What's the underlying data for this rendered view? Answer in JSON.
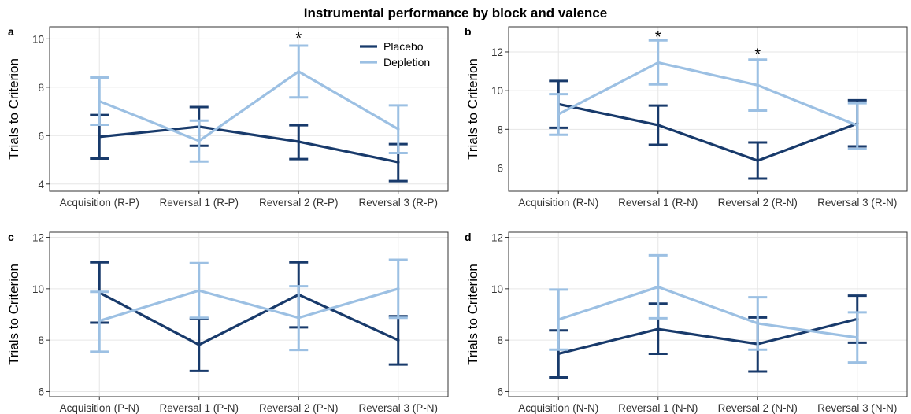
{
  "figure_title": "Instrumental performance by block and valence",
  "colors": {
    "placebo": "#183a6b",
    "depletion": "#9cc0e3",
    "grid": "#e6e6e6",
    "frame": "#333333"
  },
  "legend": [
    {
      "name": "Placebo",
      "color": "#183a6b"
    },
    {
      "name": "Depletion",
      "color": "#9cc0e3"
    }
  ],
  "chart_data": [
    {
      "type": "line",
      "panel_label": "a",
      "title": "",
      "xlabel": "",
      "ylabel": "Trials to Criterion",
      "categories": [
        "Acquisition (R-P)",
        "Reversal 1 (R-P)",
        "Reversal 2 (R-P)",
        "Reversal 3 (R-P)"
      ],
      "ylim": [
        3.7,
        10.5
      ],
      "yticks": [
        4,
        6,
        8,
        10
      ],
      "grid": true,
      "legend_position": "top-right",
      "significance": [
        {
          "category_index": 2,
          "label": "*",
          "y": 10.2
        }
      ],
      "series": [
        {
          "name": "Placebo",
          "values": [
            5.95,
            6.37,
            5.75,
            4.9
          ],
          "error_low": [
            5.05,
            5.58,
            5.03,
            4.12
          ],
          "error_high": [
            6.85,
            7.18,
            6.43,
            5.65
          ]
        },
        {
          "name": "Depletion",
          "values": [
            7.42,
            5.78,
            8.65,
            6.27
          ],
          "error_low": [
            6.45,
            4.93,
            7.58,
            5.28
          ],
          "error_high": [
            8.4,
            6.62,
            9.72,
            7.25
          ]
        }
      ]
    },
    {
      "type": "line",
      "panel_label": "b",
      "title": "",
      "xlabel": "",
      "ylabel": "Trials to Criterion",
      "categories": [
        "Acquisition (R-N)",
        "Reversal 1 (R-N)",
        "Reversal 2 (R-N)",
        "Reversal 3 (R-N)"
      ],
      "ylim": [
        4.8,
        13.3
      ],
      "yticks": [
        6,
        8,
        10,
        12
      ],
      "grid": true,
      "significance": [
        {
          "category_index": 1,
          "label": "*",
          "y": 13.0
        },
        {
          "category_index": 2,
          "label": "*",
          "y": 12.1
        }
      ],
      "series": [
        {
          "name": "Placebo",
          "values": [
            9.3,
            8.22,
            6.38,
            8.3
          ],
          "error_low": [
            8.08,
            7.2,
            5.45,
            7.12
          ],
          "error_high": [
            10.5,
            9.23,
            7.32,
            9.5
          ]
        },
        {
          "name": "Depletion",
          "values": [
            8.78,
            11.45,
            10.28,
            8.2
          ],
          "error_low": [
            7.72,
            10.32,
            8.97,
            6.98
          ],
          "error_high": [
            9.82,
            12.6,
            11.6,
            9.35
          ]
        }
      ]
    },
    {
      "type": "line",
      "panel_label": "c",
      "title": "",
      "xlabel": "",
      "ylabel": "Trials to Criterion",
      "categories": [
        "Acquisition (P-N)",
        "Reversal 1 (P-N)",
        "Reversal 2 (P-N)",
        "Reversal 3 (P-N)"
      ],
      "ylim": [
        5.8,
        12.2
      ],
      "yticks": [
        6,
        8,
        10,
        12
      ],
      "grid": true,
      "significance": [],
      "series": [
        {
          "name": "Placebo",
          "values": [
            9.85,
            7.82,
            9.77,
            8.0
          ],
          "error_low": [
            8.68,
            6.8,
            8.5,
            7.05
          ],
          "error_high": [
            11.03,
            8.83,
            11.03,
            8.93
          ]
        },
        {
          "name": "Depletion",
          "values": [
            8.75,
            9.93,
            8.87,
            10.0
          ],
          "error_low": [
            7.55,
            8.87,
            7.62,
            8.87
          ],
          "error_high": [
            9.88,
            11.0,
            10.1,
            11.13
          ]
        }
      ]
    },
    {
      "type": "line",
      "panel_label": "d",
      "title": "",
      "xlabel": "",
      "ylabel": "Trials to Criterion",
      "categories": [
        "Acquisition (N-N)",
        "Reversal 1 (N-N)",
        "Reversal 2 (N-N)",
        "Reversal 3 (N-N)"
      ],
      "ylim": [
        5.8,
        12.2
      ],
      "yticks": [
        6,
        8,
        10,
        12
      ],
      "grid": true,
      "significance": [],
      "series": [
        {
          "name": "Placebo",
          "values": [
            7.47,
            8.43,
            7.85,
            8.82
          ],
          "error_low": [
            6.55,
            7.47,
            6.78,
            7.9
          ],
          "error_high": [
            8.38,
            9.42,
            8.88,
            9.73
          ]
        },
        {
          "name": "Depletion",
          "values": [
            8.8,
            10.07,
            8.65,
            8.1
          ],
          "error_low": [
            7.63,
            8.85,
            7.63,
            7.13
          ],
          "error_high": [
            9.97,
            11.3,
            9.67,
            9.08
          ]
        }
      ]
    }
  ]
}
